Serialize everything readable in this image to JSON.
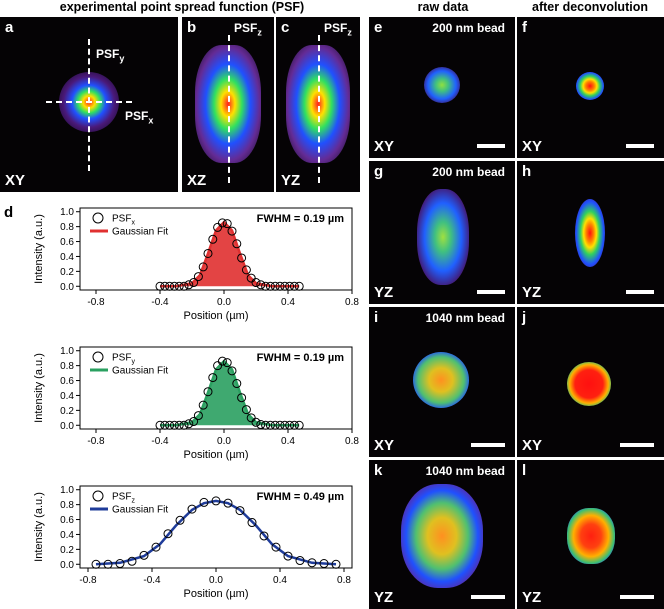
{
  "headers": {
    "left": "experimental point spread function (PSF)",
    "raw": "raw data",
    "deconv": "after deconvolution"
  },
  "panels": {
    "a": {
      "letter": "a",
      "orient": "XY",
      "psf_y": "PSF",
      "psf_y_sub": "y",
      "psf_x": "PSF",
      "psf_x_sub": "x"
    },
    "b": {
      "letter": "b",
      "orient": "XZ",
      "psf": "PSF",
      "psf_sub": "z"
    },
    "c": {
      "letter": "c",
      "orient": "YZ",
      "psf": "PSF",
      "psf_sub": "z"
    },
    "d": {
      "letter": "d"
    },
    "e": {
      "letter": "e",
      "bead": "200 nm bead",
      "orient": "XY"
    },
    "f": {
      "letter": "f",
      "orient": "XY"
    },
    "g": {
      "letter": "g",
      "bead": "200 nm bead",
      "orient": "YZ"
    },
    "h": {
      "letter": "h",
      "orient": "YZ"
    },
    "i": {
      "letter": "i",
      "bead": "1040 nm bead",
      "orient": "XY"
    },
    "j": {
      "letter": "j",
      "orient": "XY"
    },
    "k": {
      "letter": "k",
      "bead": "1040 nm bead",
      "orient": "YZ"
    },
    "l": {
      "letter": "l",
      "orient": "YZ"
    }
  },
  "chart_data": [
    {
      "type": "scatter",
      "xlabel": "Position (µm)",
      "ylabel": "Intensity (a.u.)",
      "xlim": [
        -0.9,
        0.8
      ],
      "ylim": [
        -0.05,
        1.05
      ],
      "xticks": [
        -0.8,
        -0.4,
        0.0,
        0.4,
        0.8
      ],
      "xtick_labels": [
        "-0.8",
        "-0.4",
        "0.0",
        "0.4",
        "0.8"
      ],
      "yticks": [
        0.0,
        0.2,
        0.4,
        0.6,
        0.8,
        1.0
      ],
      "ytick_labels": [
        "0.0",
        "0.2",
        "0.4",
        "0.6",
        "0.8",
        "1.0"
      ],
      "legend": {
        "data_label": "PSF",
        "data_sub": "x",
        "fit_label": "Gaussian Fit",
        "position": "top-left"
      },
      "annotation": "FWHM = 0.19 µm",
      "fit_color": "#e03030",
      "fit_fill": "#e03030",
      "series": [
        {
          "name": "PSFx",
          "x": [
            -0.4,
            -0.37,
            -0.34,
            -0.31,
            -0.28,
            -0.25,
            -0.22,
            -0.19,
            -0.16,
            -0.13,
            -0.1,
            -0.07,
            -0.04,
            -0.01,
            0.02,
            0.05,
            0.08,
            0.11,
            0.14,
            0.17,
            0.2,
            0.23,
            0.26,
            0.29,
            0.32,
            0.35,
            0.38,
            0.41,
            0.44,
            0.47
          ],
          "y": [
            0.0,
            0.0,
            0.0,
            0.0,
            0.0,
            0.0,
            0.02,
            0.05,
            0.13,
            0.26,
            0.44,
            0.63,
            0.79,
            0.85,
            0.84,
            0.74,
            0.57,
            0.38,
            0.22,
            0.11,
            0.05,
            0.02,
            0.0,
            0.0,
            0.0,
            0.0,
            0.0,
            0.0,
            0.0,
            0.0
          ]
        },
        {
          "name": "Gaussian Fit",
          "x": [
            -0.4,
            -0.3,
            -0.2,
            -0.15,
            -0.1,
            -0.05,
            0.0,
            0.05,
            0.1,
            0.15,
            0.2,
            0.3,
            0.47
          ],
          "y": [
            0.0,
            0.0,
            0.04,
            0.15,
            0.44,
            0.75,
            0.86,
            0.75,
            0.44,
            0.15,
            0.04,
            0.0,
            0.0
          ]
        }
      ]
    },
    {
      "type": "scatter",
      "xlabel": "Position (µm)",
      "ylabel": "Intensity (a.u.)",
      "xlim": [
        -0.9,
        0.8
      ],
      "ylim": [
        -0.05,
        1.05
      ],
      "xticks": [
        -0.8,
        -0.4,
        0.0,
        0.4,
        0.8
      ],
      "xtick_labels": [
        "-0.8",
        "-0.4",
        "0.0",
        "0.4",
        "0.8"
      ],
      "yticks": [
        0.0,
        0.2,
        0.4,
        0.6,
        0.8,
        1.0
      ],
      "ytick_labels": [
        "0.0",
        "0.2",
        "0.4",
        "0.6",
        "0.8",
        "1.0"
      ],
      "legend": {
        "data_label": "PSF",
        "data_sub": "y",
        "fit_label": "Gaussian Fit",
        "position": "top-left"
      },
      "annotation": "FWHM = 0.19 µm",
      "fit_color": "#2aa060",
      "fit_fill": "#2aa060",
      "series": [
        {
          "name": "PSFy",
          "x": [
            -0.4,
            -0.37,
            -0.34,
            -0.31,
            -0.28,
            -0.25,
            -0.22,
            -0.19,
            -0.16,
            -0.13,
            -0.1,
            -0.07,
            -0.04,
            -0.01,
            0.02,
            0.05,
            0.08,
            0.11,
            0.14,
            0.17,
            0.2,
            0.23,
            0.26,
            0.29,
            0.32,
            0.35,
            0.38,
            0.41,
            0.44,
            0.47
          ],
          "y": [
            0.0,
            0.0,
            0.0,
            0.0,
            0.0,
            0.0,
            0.02,
            0.05,
            0.13,
            0.27,
            0.45,
            0.64,
            0.8,
            0.86,
            0.84,
            0.73,
            0.56,
            0.37,
            0.21,
            0.1,
            0.04,
            0.01,
            0.0,
            0.0,
            0.0,
            0.0,
            0.0,
            0.0,
            0.0,
            0.0
          ]
        },
        {
          "name": "Gaussian Fit",
          "x": [
            -0.4,
            -0.3,
            -0.2,
            -0.15,
            -0.1,
            -0.05,
            0.0,
            0.05,
            0.1,
            0.15,
            0.2,
            0.3,
            0.47
          ],
          "y": [
            0.0,
            0.0,
            0.04,
            0.15,
            0.44,
            0.75,
            0.86,
            0.75,
            0.44,
            0.15,
            0.04,
            0.0,
            0.0
          ]
        }
      ]
    },
    {
      "type": "scatter",
      "xlabel": "Position (µm)",
      "ylabel": "Intensity (a.u.)",
      "xlim": [
        -0.85,
        0.85
      ],
      "ylim": [
        -0.05,
        1.05
      ],
      "xticks": [
        -0.8,
        -0.4,
        0.0,
        0.4,
        0.8
      ],
      "xtick_labels": [
        "-0.8",
        "-0.4",
        "0.0",
        "0.4",
        "0.8"
      ],
      "yticks": [
        0.0,
        0.2,
        0.4,
        0.6,
        0.8,
        1.0
      ],
      "ytick_labels": [
        "0.0",
        "0.2",
        "0.4",
        "0.6",
        "0.8",
        "1.0"
      ],
      "legend": {
        "data_label": "PSF",
        "data_sub": "z",
        "fit_label": "Gaussian Fit",
        "position": "top-left"
      },
      "annotation": "FWHM = 0.49 µm",
      "fit_color": "#1f3c9a",
      "fit_fill": "none",
      "series": [
        {
          "name": "PSFz",
          "x": [
            -0.75,
            -0.675,
            -0.6,
            -0.525,
            -0.45,
            -0.375,
            -0.3,
            -0.225,
            -0.15,
            -0.075,
            0.0,
            0.075,
            0.15,
            0.225,
            0.3,
            0.375,
            0.45,
            0.525,
            0.6,
            0.675,
            0.75
          ],
          "y": [
            0.0,
            0.0,
            0.01,
            0.04,
            0.12,
            0.23,
            0.41,
            0.59,
            0.74,
            0.83,
            0.85,
            0.82,
            0.72,
            0.56,
            0.38,
            0.23,
            0.11,
            0.05,
            0.02,
            0.01,
            0.0
          ]
        },
        {
          "name": "Gaussian Fit",
          "x": [
            -0.75,
            -0.6,
            -0.45,
            -0.35,
            -0.25,
            -0.15,
            -0.075,
            0.0,
            0.075,
            0.15,
            0.25,
            0.35,
            0.45,
            0.6,
            0.75
          ],
          "y": [
            0.0,
            0.02,
            0.11,
            0.27,
            0.52,
            0.73,
            0.82,
            0.85,
            0.82,
            0.73,
            0.52,
            0.27,
            0.11,
            0.02,
            0.0
          ]
        }
      ]
    }
  ]
}
